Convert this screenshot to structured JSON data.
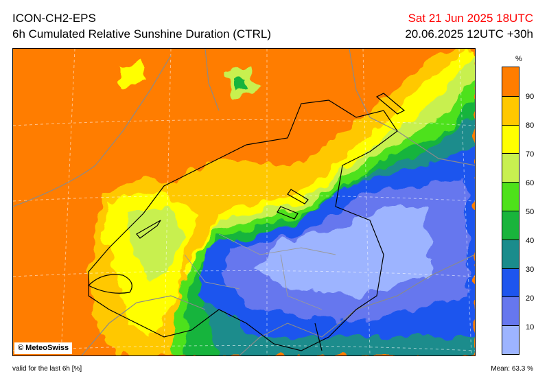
{
  "header": {
    "model": "ICON-CH2-EPS",
    "product": "6h Cumulated Relative Sunshine Duration (CTRL)",
    "valid_time": "Sat 21 Jun 2025 18UTC",
    "run_info": "20.06.2025 12UTC +30h"
  },
  "map": {
    "copyright": "© MeteoSwiss"
  },
  "legend": {
    "unit": "%",
    "ticks": [
      "90",
      "80",
      "70",
      "60",
      "50",
      "40",
      "30",
      "20",
      "10"
    ],
    "colors": [
      "#9db4ff",
      "#6677ee",
      "#1e55ee",
      "#1a8c8c",
      "#19b43c",
      "#4ee11a",
      "#c8f050",
      "#ffff00",
      "#ffc800",
      "#ff7d00"
    ]
  },
  "footer": {
    "validity": "valid for the last 6h [%]",
    "mean": "Mean:  63.3 %"
  }
}
